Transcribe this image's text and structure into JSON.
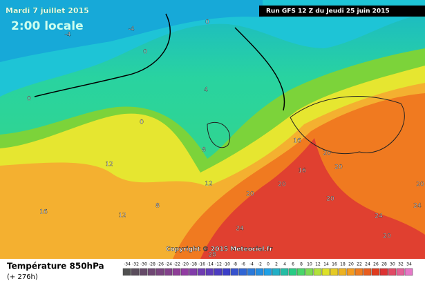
{
  "header": {
    "date": "Mardi 7 juillet 2015",
    "local_time": "2:00 locale",
    "run": "Run GFS 12 Z du Jeudi 25 juin 2015"
  },
  "copyright": "Copyright © 2015 Meteociel.fr",
  "legend": {
    "title": "Température 850hPa",
    "lead": "(+ 276h)",
    "scale": [
      -34,
      -32,
      -30,
      -28,
      -26,
      -24,
      -22,
      -20,
      -18,
      -16,
      -14,
      -12,
      -10,
      -8,
      -6,
      -4,
      -2,
      0,
      2,
      4,
      6,
      8,
      10,
      12,
      14,
      16,
      18,
      20,
      22,
      24,
      26,
      28,
      30,
      32,
      34
    ]
  },
  "contours": [
    0,
    -4,
    -4,
    0,
    4,
    0,
    0,
    8,
    12,
    12,
    16,
    16,
    20,
    20,
    20,
    20,
    20,
    16,
    12,
    8,
    24,
    24,
    20,
    28,
    24,
    20
  ]
}
